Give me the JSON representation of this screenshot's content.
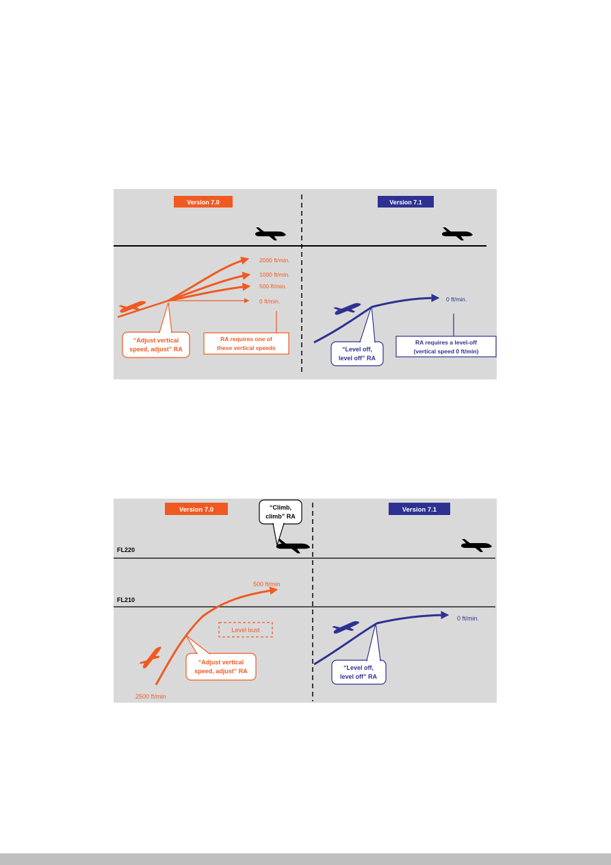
{
  "colors": {
    "v70": "#f05a22",
    "v71": "#2e3192",
    "panel_bg": "#d9d9d9",
    "line": "#000000",
    "footer_bar": "#bfbfbf"
  },
  "figure_a": {
    "version_left": "Version 7.0",
    "version_right": "Version 7.1",
    "speeds_left": [
      "2000 ft/min.",
      "1000 ft/min.",
      "500 ft/min.",
      "0 ft/min."
    ],
    "speed_right": "0 ft/min.",
    "callout_left_line1": "“Adjust vertical",
    "callout_left_line2": "speed, adjust” RA",
    "note_left_line1": "RA requires one of",
    "note_left_line2": "these vertical speeds",
    "callout_right_line1": "“Level off,",
    "callout_right_line2": "level off” RA",
    "note_right_line1": "RA requires a level-off",
    "note_right_line2": "(vertical speed 0 ft/min)"
  },
  "figure_b": {
    "version_left": "Version 7.0",
    "version_right": "Version 7.1",
    "fl_upper": "FL220",
    "fl_lower": "FL210",
    "climb_callout_line1": "“Climb,",
    "climb_callout_line2": "climb” RA",
    "speed_end_left": "500 ft/min",
    "speed_start_left": "2500 ft/min",
    "level_bust": "Level bust",
    "callout_left_line1": "“Adjust vertical",
    "callout_left_line2": "speed, adjust” RA",
    "speed_right": "0 ft/min.",
    "callout_right_line1": "“Level off,",
    "callout_right_line2": "level off” RA"
  }
}
